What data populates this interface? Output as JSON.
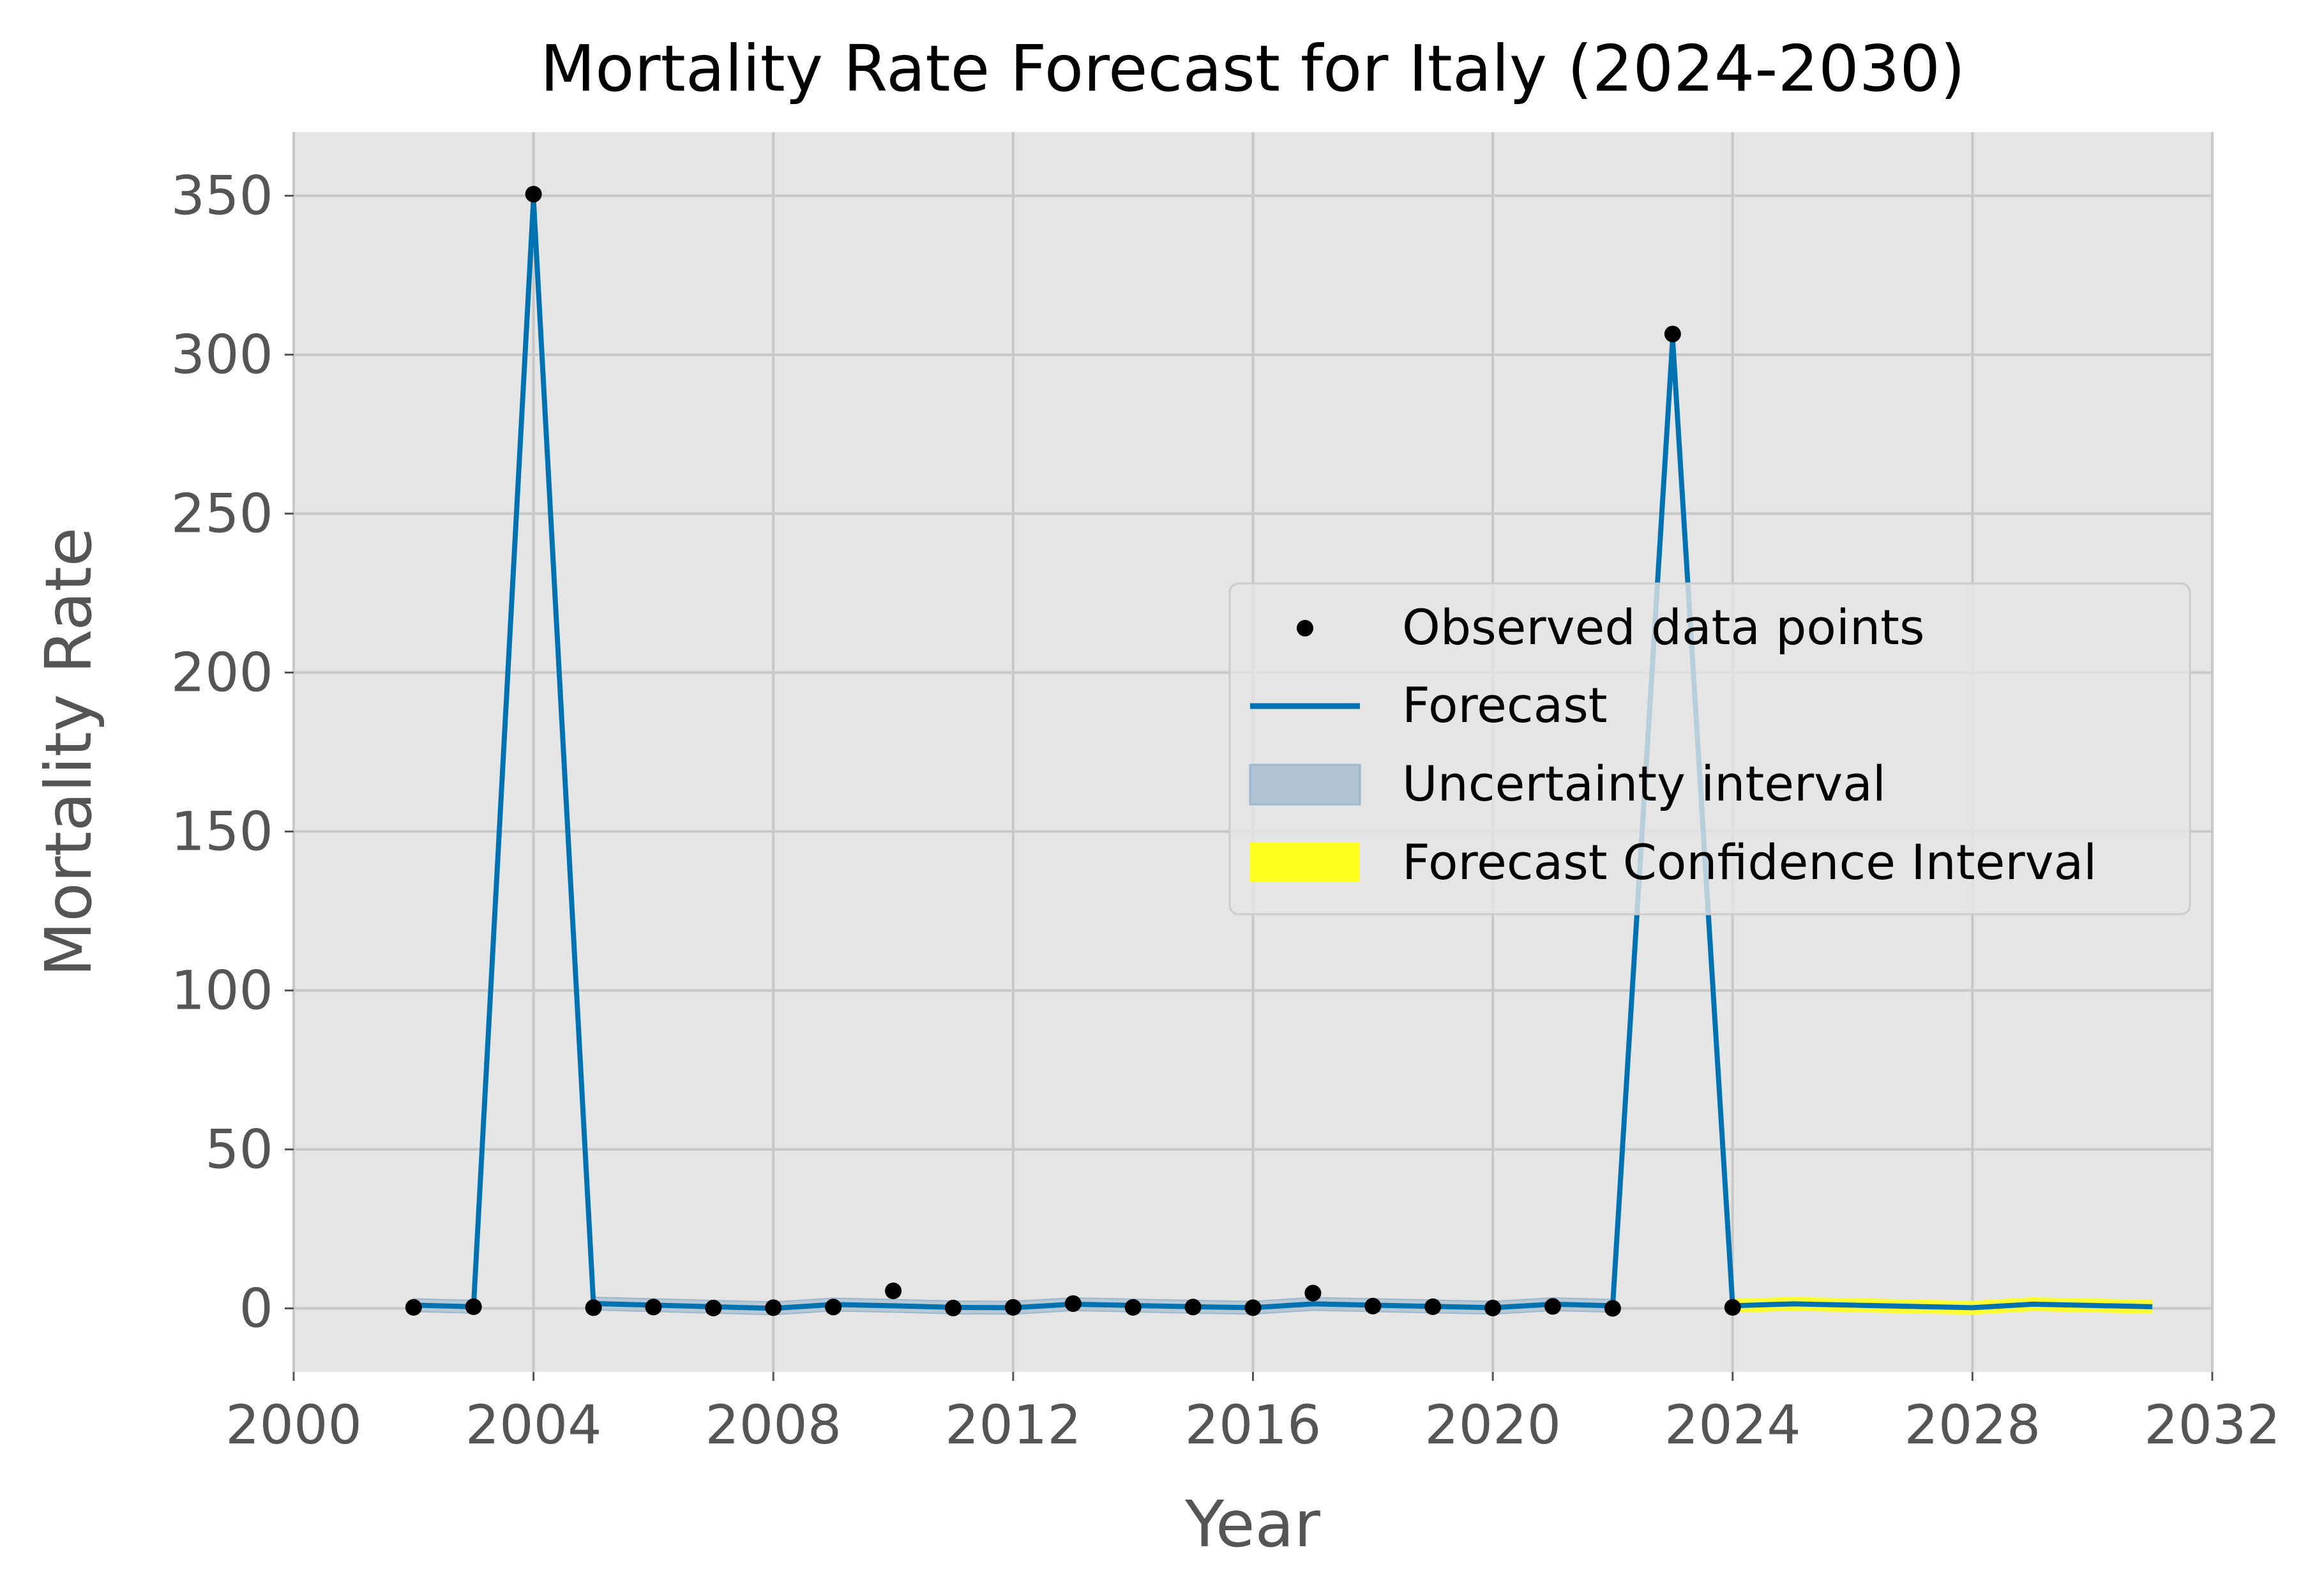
{
  "chart_data": {
    "type": "line",
    "title": "Mortality Rate Forecast for Italy (2024-2030)",
    "xlabel": "Year",
    "ylabel": "Mortality Rate",
    "xlim": [
      2000,
      2032
    ],
    "ylim": [
      -20,
      370
    ],
    "xticks": [
      2000,
      2004,
      2008,
      2012,
      2016,
      2020,
      2024,
      2028,
      2032
    ],
    "yticks": [
      0,
      50,
      100,
      150,
      200,
      250,
      300,
      350
    ],
    "grid": true,
    "legend_position": "center-right",
    "legend": {
      "observed": "Observed data points",
      "forecast": "Forecast",
      "uncertainty": "Uncertainty interval",
      "forecast_ci": "Forecast Confidence Interval"
    },
    "colors": {
      "background": "#e5e5e5",
      "grid": "#c8c8c8",
      "forecast": "#0072b2",
      "uncertainty": "#b0c4d4",
      "forecast_ci": "#ffff20",
      "observed": "#000000",
      "axis_text": "#555555",
      "title_text": "#000000"
    },
    "observed": [
      {
        "x": 2002,
        "y": 0.3
      },
      {
        "x": 2003,
        "y": 0.5
      },
      {
        "x": 2004,
        "y": 350.5
      },
      {
        "x": 2005,
        "y": 0.2
      },
      {
        "x": 2006,
        "y": 0.4
      },
      {
        "x": 2007,
        "y": 0.1
      },
      {
        "x": 2008,
        "y": 0.2
      },
      {
        "x": 2009,
        "y": 0.4
      },
      {
        "x": 2010,
        "y": 5.5
      },
      {
        "x": 2011,
        "y": 0.1
      },
      {
        "x": 2012,
        "y": 0.3
      },
      {
        "x": 2013,
        "y": 1.5
      },
      {
        "x": 2014,
        "y": 0.3
      },
      {
        "x": 2015,
        "y": 0.4
      },
      {
        "x": 2016,
        "y": 0.2
      },
      {
        "x": 2017,
        "y": 4.8
      },
      {
        "x": 2018,
        "y": 0.7
      },
      {
        "x": 2019,
        "y": 0.5
      },
      {
        "x": 2020,
        "y": 0.1
      },
      {
        "x": 2021,
        "y": 0.6
      },
      {
        "x": 2022,
        "y": 0.0
      },
      {
        "x": 2023,
        "y": 306.5
      },
      {
        "x": 2024,
        "y": 0.3
      }
    ],
    "forecast": [
      {
        "x": 2002,
        "y": 1.0,
        "lo": -1.0,
        "hi": 3.0
      },
      {
        "x": 2003,
        "y": 0.5,
        "lo": -1.5,
        "hi": 2.5
      },
      {
        "x": 2004,
        "y": 349.0,
        "lo": 347.0,
        "hi": 351.0
      },
      {
        "x": 2005,
        "y": 1.5,
        "lo": -0.5,
        "hi": 3.5
      },
      {
        "x": 2006,
        "y": 1.0,
        "lo": -1.0,
        "hi": 3.0
      },
      {
        "x": 2007,
        "y": 0.5,
        "lo": -1.5,
        "hi": 2.5
      },
      {
        "x": 2008,
        "y": 0.0,
        "lo": -2.0,
        "hi": 2.0
      },
      {
        "x": 2009,
        "y": 1.2,
        "lo": -0.8,
        "hi": 3.2
      },
      {
        "x": 2010,
        "y": 0.8,
        "lo": -1.2,
        "hi": 2.8
      },
      {
        "x": 2011,
        "y": 0.3,
        "lo": -1.7,
        "hi": 2.3
      },
      {
        "x": 2012,
        "y": 0.2,
        "lo": -1.8,
        "hi": 2.2
      },
      {
        "x": 2013,
        "y": 1.3,
        "lo": -0.7,
        "hi": 3.3
      },
      {
        "x": 2014,
        "y": 0.9,
        "lo": -1.1,
        "hi": 2.9
      },
      {
        "x": 2015,
        "y": 0.5,
        "lo": -1.5,
        "hi": 2.5
      },
      {
        "x": 2016,
        "y": 0.2,
        "lo": -1.8,
        "hi": 2.2
      },
      {
        "x": 2017,
        "y": 1.4,
        "lo": -0.6,
        "hi": 3.4
      },
      {
        "x": 2018,
        "y": 1.0,
        "lo": -1.0,
        "hi": 3.0
      },
      {
        "x": 2019,
        "y": 0.6,
        "lo": -1.4,
        "hi": 2.6
      },
      {
        "x": 2020,
        "y": 0.2,
        "lo": -1.8,
        "hi": 2.2
      },
      {
        "x": 2021,
        "y": 1.3,
        "lo": -0.7,
        "hi": 3.3
      },
      {
        "x": 2022,
        "y": 0.8,
        "lo": -1.2,
        "hi": 2.8
      },
      {
        "x": 2023,
        "y": 305.0,
        "lo": 303.0,
        "hi": 307.0
      },
      {
        "x": 2024,
        "y": 0.8,
        "lo": -1.2,
        "hi": 2.8
      }
    ],
    "future": [
      {
        "x": 2024,
        "y": 0.8,
        "lo": -1.4,
        "hi": 3.0
      },
      {
        "x": 2025,
        "y": 1.4,
        "lo": -0.8,
        "hi": 3.6
      },
      {
        "x": 2026,
        "y": 1.0,
        "lo": -1.2,
        "hi": 3.2
      },
      {
        "x": 2027,
        "y": 0.6,
        "lo": -1.6,
        "hi": 2.8
      },
      {
        "x": 2028,
        "y": 0.2,
        "lo": -2.0,
        "hi": 2.4
      },
      {
        "x": 2029,
        "y": 1.3,
        "lo": -0.9,
        "hi": 3.5
      },
      {
        "x": 2030,
        "y": 0.9,
        "lo": -1.3,
        "hi": 3.1
      },
      {
        "x": 2031,
        "y": 0.5,
        "lo": -1.7,
        "hi": 2.7
      }
    ]
  }
}
